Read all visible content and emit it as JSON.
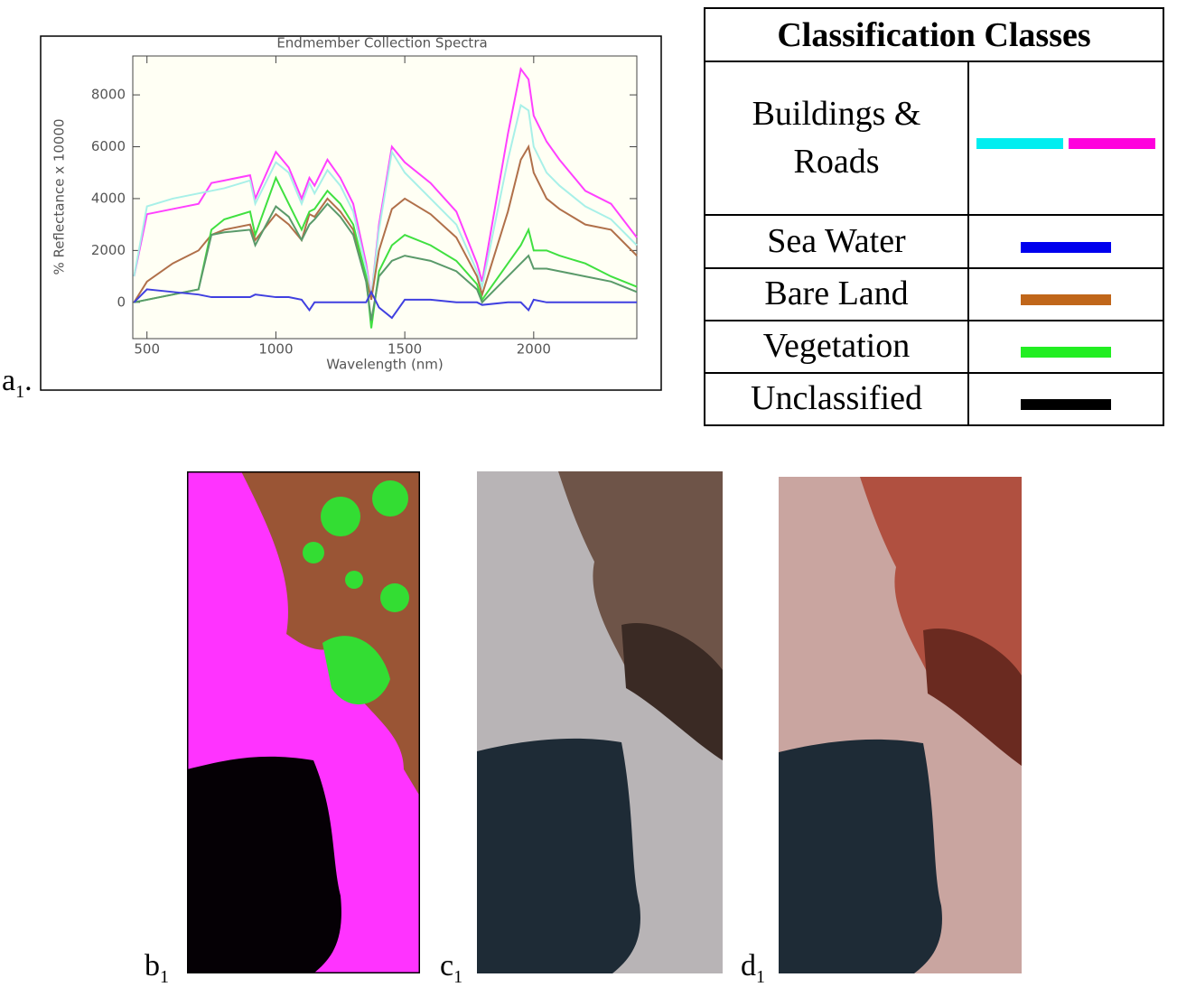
{
  "chart_data": {
    "type": "line",
    "title": "Endmember Collection Spectra",
    "x_label": "Wavelength (nm)",
    "y_label": "% Reflectance x 10000",
    "x": [
      450,
      500,
      600,
      700,
      750,
      800,
      900,
      920,
      1000,
      1050,
      1100,
      1130,
      1150,
      1200,
      1250,
      1300,
      1350,
      1370,
      1400,
      1450,
      1500,
      1600,
      1700,
      1780,
      1800,
      1900,
      1950,
      1980,
      2000,
      2050,
      2100,
      2200,
      2300,
      2400
    ],
    "series": [
      {
        "color": "#ff40ff",
        "values": [
          1000,
          3400,
          3600,
          3800,
          4600,
          4700,
          4900,
          4000,
          5800,
          5200,
          4000,
          4800,
          4500,
          5500,
          4800,
          3800,
          1500,
          200,
          3000,
          6000,
          5400,
          4600,
          3500,
          1500,
          800,
          6500,
          9000,
          8600,
          7200,
          6200,
          5500,
          4300,
          3800,
          2500
        ]
      },
      {
        "color": "#a8f0e8",
        "values": [
          1000,
          3700,
          4000,
          4200,
          4300,
          4400,
          4700,
          3800,
          5400,
          5000,
          3800,
          4600,
          4200,
          5100,
          4500,
          3500,
          1300,
          200,
          2800,
          5800,
          5000,
          4000,
          3000,
          1200,
          600,
          5500,
          7600,
          7400,
          6000,
          5000,
          4500,
          3700,
          3200,
          2200
        ]
      },
      {
        "color": "#b0704a",
        "values": [
          0,
          800,
          1500,
          2000,
          2600,
          2800,
          3000,
          2400,
          3400,
          3000,
          2400,
          3400,
          3300,
          4000,
          3500,
          2800,
          1000,
          100,
          2000,
          3600,
          4000,
          3400,
          2500,
          1000,
          300,
          3500,
          5500,
          6000,
          5000,
          4000,
          3600,
          3000,
          2800,
          1800
        ]
      },
      {
        "color": "#40e040",
        "values": [
          0,
          100,
          300,
          500,
          2800,
          3200,
          3500,
          2600,
          4800,
          3800,
          2800,
          3500,
          3600,
          4300,
          3800,
          3000,
          1000,
          -1000,
          1200,
          2200,
          2600,
          2200,
          1600,
          700,
          100,
          1500,
          2200,
          2800,
          2000,
          2000,
          1800,
          1500,
          1000,
          600
        ]
      },
      {
        "color": "#5a9a6a",
        "values": [
          0,
          100,
          300,
          500,
          2600,
          2700,
          2800,
          2200,
          3700,
          3300,
          2400,
          3000,
          3200,
          3800,
          3300,
          2600,
          800,
          -700,
          1000,
          1600,
          1800,
          1600,
          1200,
          500,
          0,
          1000,
          1500,
          1800,
          1300,
          1300,
          1200,
          1000,
          800,
          400
        ]
      },
      {
        "color": "#4040e0",
        "values": [
          0,
          500,
          400,
          300,
          200,
          200,
          200,
          300,
          200,
          200,
          100,
          -300,
          0,
          0,
          0,
          0,
          0,
          400,
          -200,
          -600,
          100,
          100,
          0,
          0,
          -100,
          0,
          0,
          -300,
          100,
          0,
          0,
          0,
          0,
          0
        ]
      }
    ],
    "xlim": [
      445,
      2400
    ],
    "ylim": [
      -1400,
      9500
    ],
    "xticks": [
      500,
      1000,
      1500,
      2000
    ],
    "yticks": [
      0,
      2000,
      4000,
      6000,
      8000
    ]
  },
  "table": {
    "header": "Classification Classes",
    "rows": [
      {
        "label": "Buildings & Roads",
        "colors": [
          "#00eef0",
          "#ff00dd"
        ]
      },
      {
        "label": "Sea Water",
        "colors": [
          "#0000ee"
        ]
      },
      {
        "label": "Bare Land",
        "colors": [
          "#c0661a"
        ]
      },
      {
        "label": "Vegetation",
        "colors": [
          "#22ee22"
        ]
      },
      {
        "label": "Unclassified",
        "colors": [
          "#000000"
        ]
      }
    ]
  },
  "panels": [
    {
      "letter": "a",
      "sub": "1",
      "end": "."
    },
    {
      "letter": "b",
      "sub": "1"
    },
    {
      "letter": "c",
      "sub": "1"
    },
    {
      "letter": "d",
      "sub": "1"
    }
  ]
}
